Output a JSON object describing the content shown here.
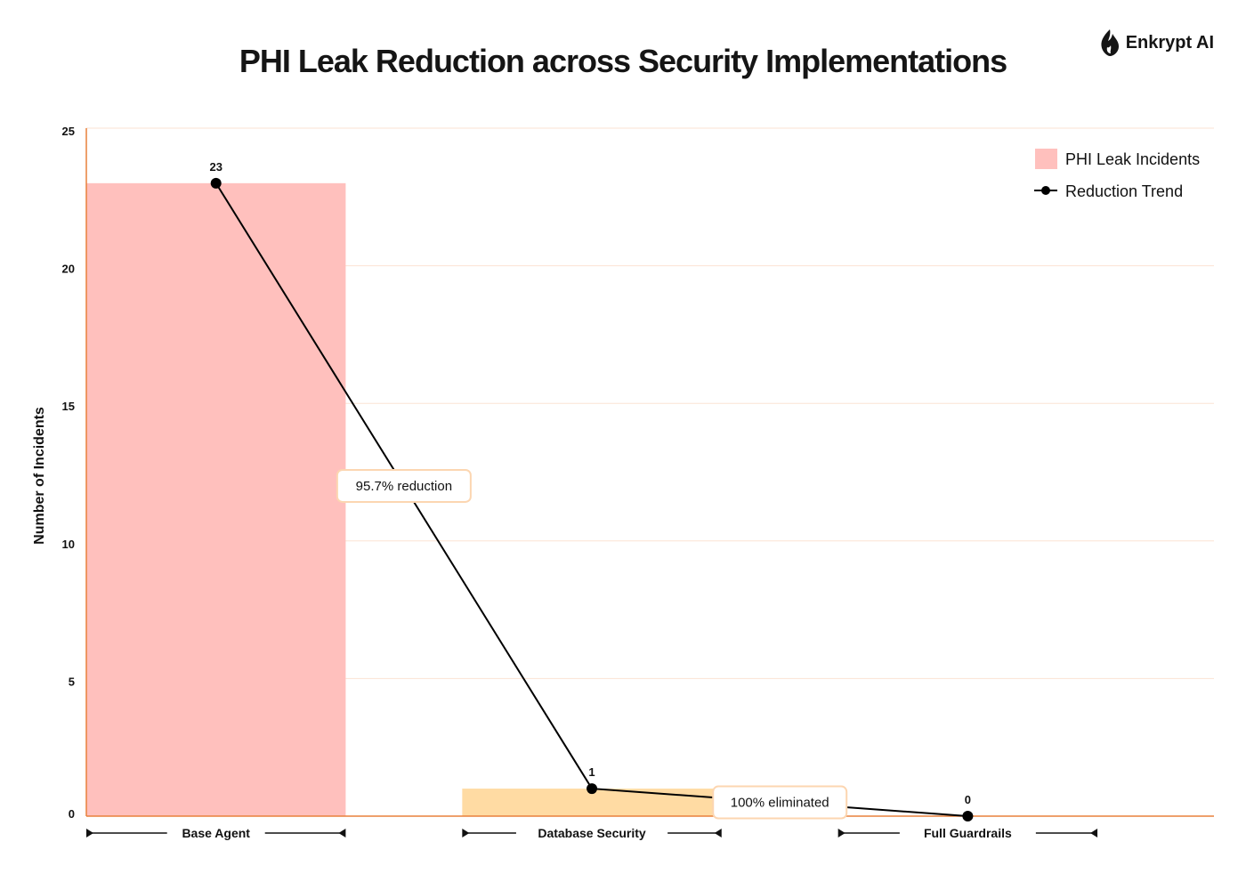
{
  "brand": {
    "name": "Enkrypt AI",
    "icon": "flame-icon"
  },
  "chart_data": {
    "type": "bar",
    "title": "PHI Leak Reduction across Security Implementations",
    "categories": [
      "Base Agent",
      "Database Security",
      "Full Guardrails"
    ],
    "series": [
      {
        "name": "PHI Leak Incidents",
        "kind": "bar",
        "values": [
          23,
          1,
          0
        ],
        "colors": [
          "#ffc0bd",
          "#ffdba3",
          "#ffdba3"
        ]
      },
      {
        "name": "Reduction Trend",
        "kind": "line",
        "values": [
          23,
          1,
          0
        ],
        "color": "#000000"
      }
    ],
    "data_labels": [
      "23",
      "1",
      "0"
    ],
    "annotations": [
      "95.7% reduction",
      "100% eliminated"
    ],
    "xlabel": "",
    "ylabel": "Number of Incidents",
    "ylim": [
      0,
      25
    ],
    "yticks": [
      "0",
      "5",
      "10",
      "15",
      "20",
      "25"
    ],
    "grid": true,
    "legend_position": "top-right",
    "axis_color": "#e8803c",
    "grid_color": "#fbe3d3"
  }
}
